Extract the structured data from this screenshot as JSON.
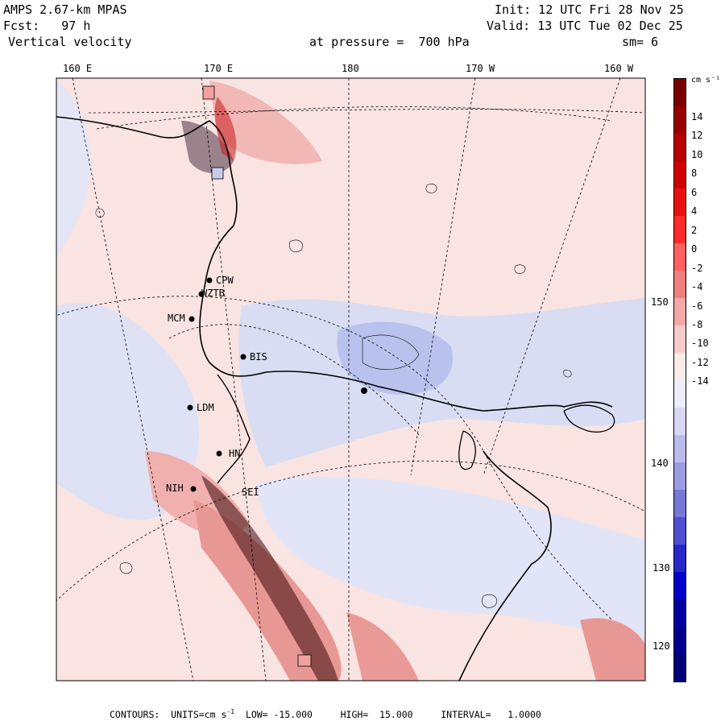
{
  "header": {
    "model": "AMPS 2.67-km MPAS",
    "forecast": "Fcst:   97 h",
    "field": "Vertical velocity",
    "init": "Init: 12 UTC Fri 28 Nov 25",
    "valid": "Valid: 13 UTC Tue 02 Dec 25",
    "level": "at pressure =  700 hPa",
    "smoothing": "sm= 6"
  },
  "lon_labels": [
    "160 E",
    "170 E",
    "180",
    "170 W",
    "160 W"
  ],
  "lat_labels": [
    "150 W",
    "140 W",
    "130 W",
    "120 W"
  ],
  "stations": [
    "CPW",
    "WZTB",
    "MCM",
    "BIS",
    "LDM",
    "NIH",
    "SEI",
    "HN"
  ],
  "colorbar": {
    "units_label": "cm s⁻¹",
    "ticks": [
      "14",
      "12",
      "10",
      "8",
      "6",
      "4",
      "2",
      "0",
      "-2",
      "-4",
      "-6",
      "-8",
      "-10",
      "-12",
      "-14"
    ],
    "colors": [
      "#7a0000",
      "#9a0000",
      "#b80000",
      "#d10000",
      "#e81010",
      "#ff2a2a",
      "#ff6060",
      "#f08080",
      "#f4a8a8",
      "#f8cccc",
      "#fcebeb",
      "#eeeefa",
      "#d8d8f4",
      "#bcbcec",
      "#9c9ce2",
      "#7878d8",
      "#5050d0",
      "#2828c8",
      "#0000c8",
      "#0000a0",
      "#00008c",
      "#000078"
    ],
    "accent_warm": "#f6d6d4",
    "accent_cool": "#d2d8f2"
  },
  "footer": {
    "contours": "CONTOURS:  UNITS=cm s",
    "exp": "-1",
    "rest": "  LOW= -15.000     HIGH=  15.000     INTERVAL=   1.0000"
  }
}
